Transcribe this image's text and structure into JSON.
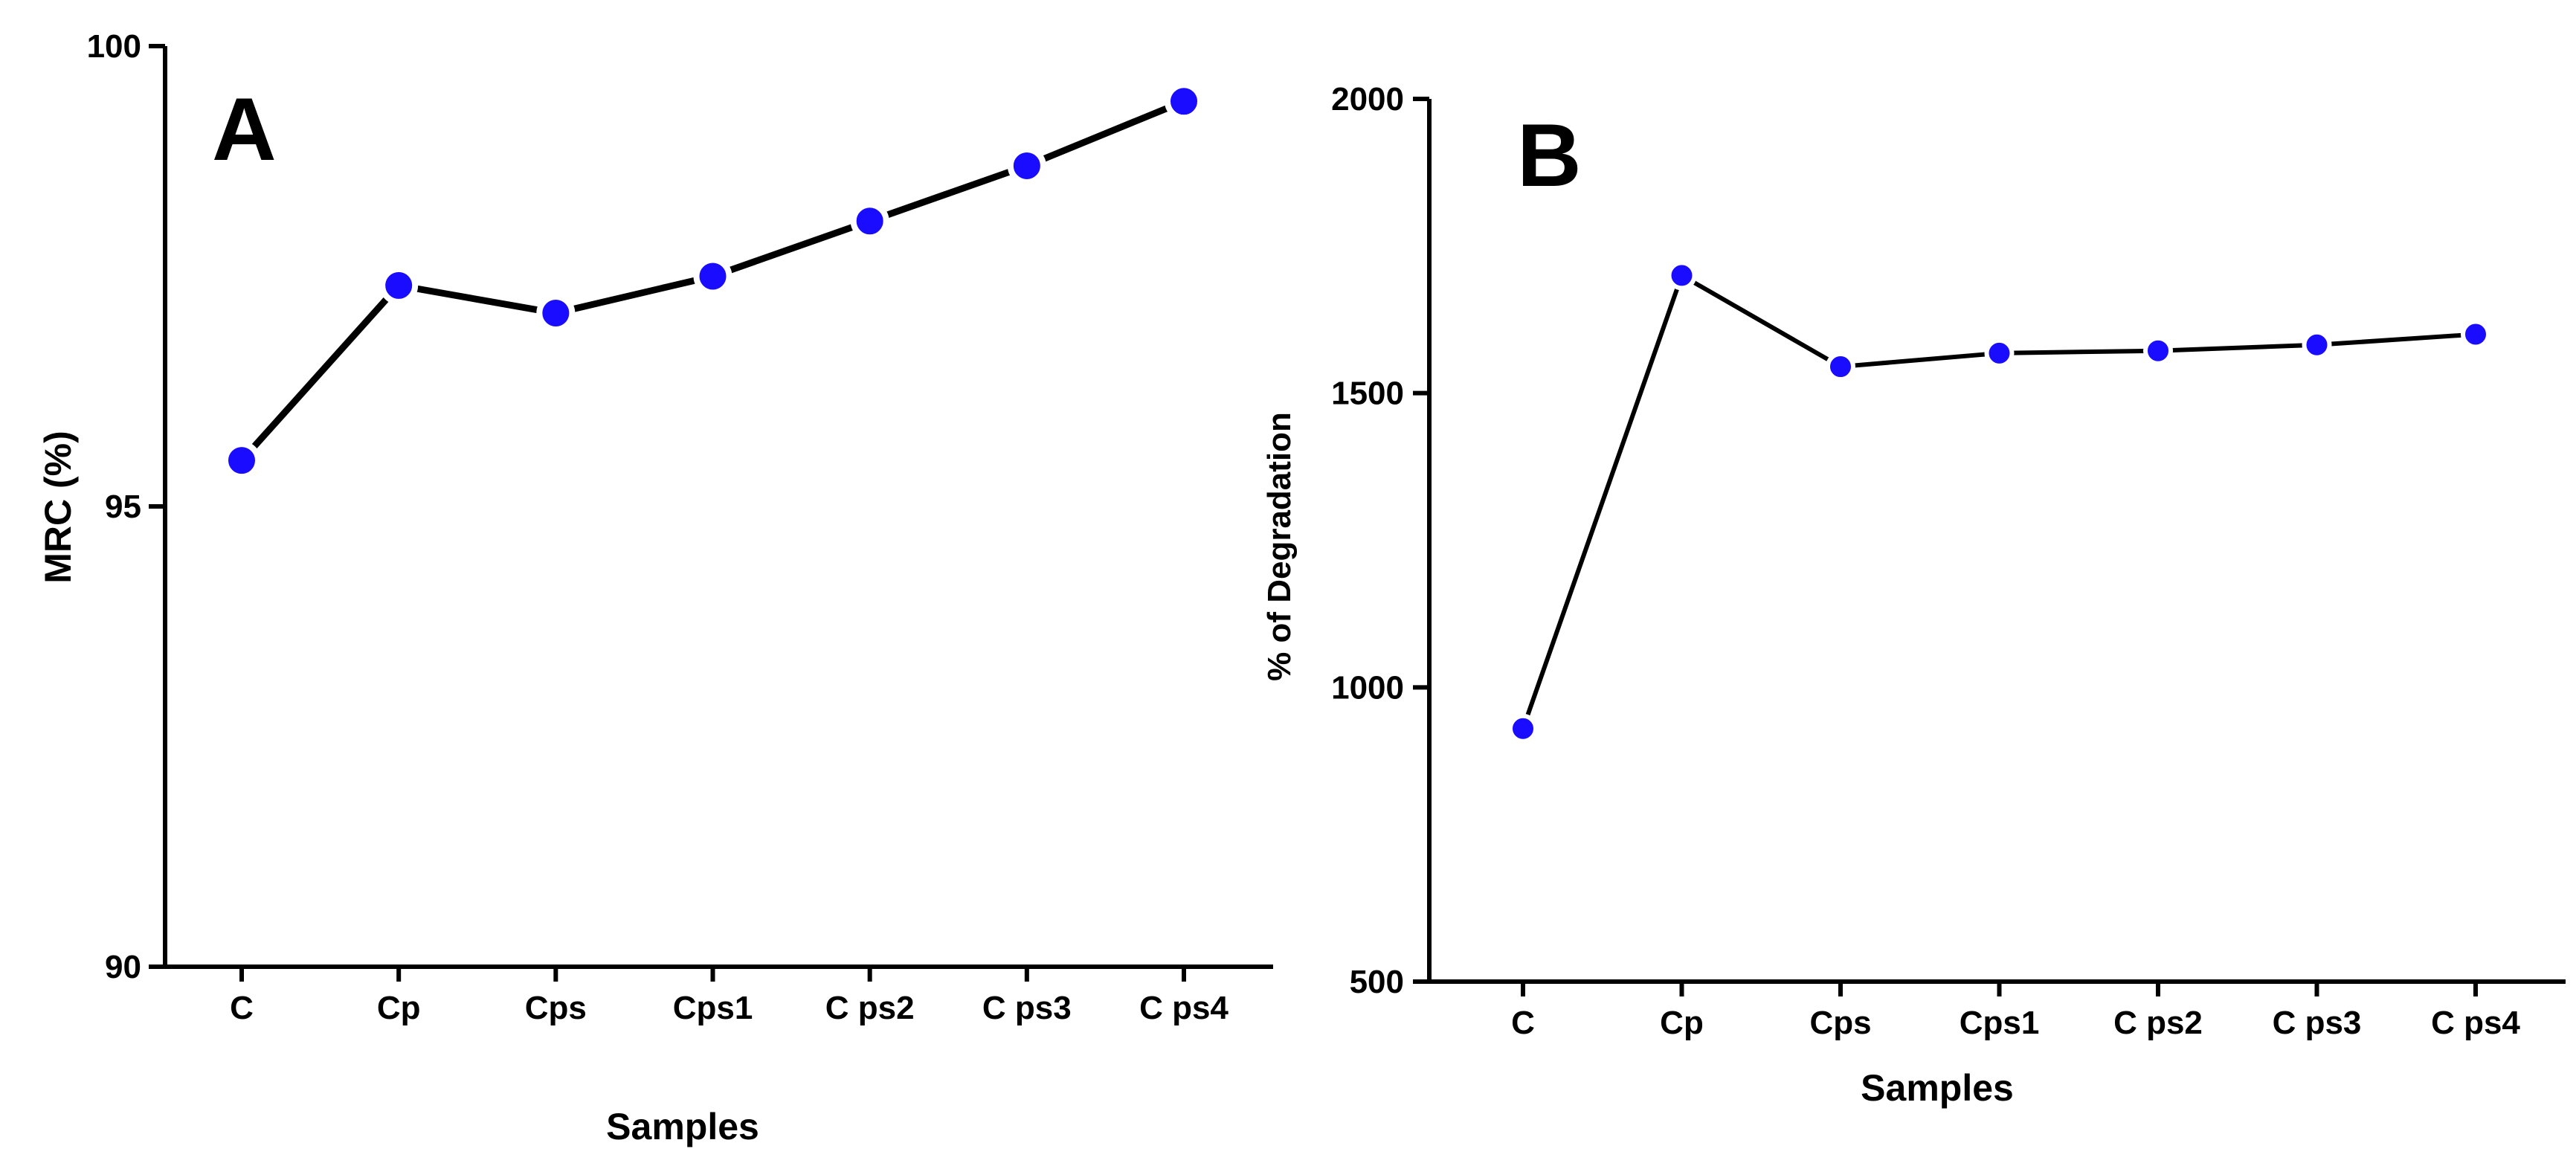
{
  "chart_data": [
    {
      "type": "line",
      "panel_label": "A",
      "categories": [
        "C",
        "Cp",
        "Cps",
        "Cps1",
        "C ps2",
        "C ps3",
        "C ps4"
      ],
      "values": [
        95.5,
        97.4,
        97.1,
        97.5,
        98.1,
        98.7,
        99.4
      ],
      "xlabel": "Samples",
      "ylabel": "MRC (%)",
      "ylim": [
        90,
        100
      ],
      "yticks": [
        90,
        95,
        100
      ],
      "ytick_labels": [
        "90",
        "95",
        "100"
      ],
      "grid": false,
      "marker_color": "#1a0dff",
      "line_color": "#000000"
    },
    {
      "type": "line",
      "panel_label": "B",
      "categories": [
        "C",
        "Cp",
        "Cps",
        "Cps1",
        "C ps2",
        "C ps3",
        "C ps4"
      ],
      "values": [
        930,
        1700,
        1545,
        1568,
        1572,
        1582,
        1600
      ],
      "xlabel": "Samples",
      "ylabel": "% of Degradation",
      "ylim": [
        500,
        2000
      ],
      "yticks": [
        500,
        1000,
        1500,
        2000
      ],
      "ytick_labels": [
        "500",
        "1000",
        "1500",
        "2000"
      ],
      "grid": false,
      "marker_color": "#1a0dff",
      "line_color": "#000000"
    }
  ]
}
